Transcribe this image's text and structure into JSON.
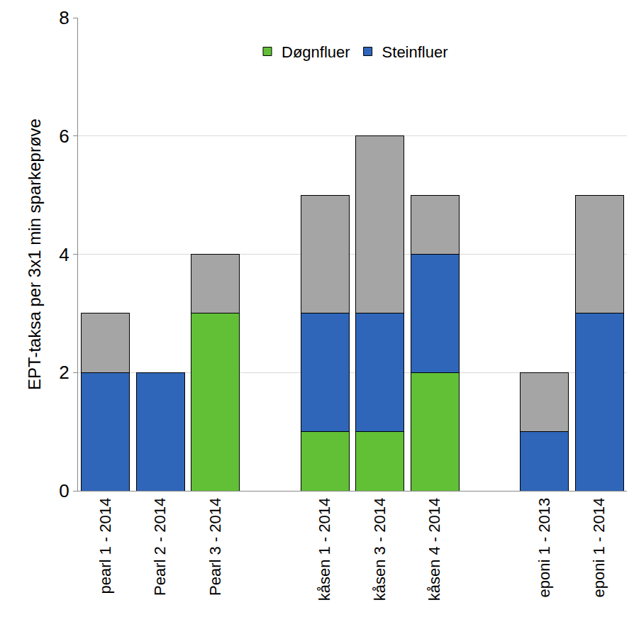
{
  "chart_data": {
    "type": "bar",
    "stacked": true,
    "y_label": "EPT-taksa per 3x1 min sparkeprøve",
    "categories": [
      "pearl 1 - 2014",
      "Pearl 2 - 2014",
      "Pearl 3 - 2014",
      null,
      "kåsen 1 - 2014",
      "kåsen 3 - 2014",
      "kåsen 4 - 2014",
      null,
      "eponi 1 - 2013",
      "eponi 1 - 2014"
    ],
    "series": [
      {
        "name": "Døgnfluer",
        "color": "#62c037",
        "values": [
          0,
          0,
          3,
          null,
          1,
          1,
          2,
          null,
          0,
          0
        ]
      },
      {
        "name": "Steinfluer",
        "color": "#2f66b9",
        "values": [
          2,
          2,
          0,
          null,
          2,
          2,
          2,
          null,
          1,
          3
        ]
      },
      {
        "color": "#a5a5a5",
        "values": [
          1,
          0,
          1,
          null,
          2,
          3,
          1,
          null,
          1,
          2
        ]
      }
    ],
    "ylim": [
      0,
      8
    ],
    "yticks": [
      0,
      2,
      4,
      6,
      8
    ],
    "grid": true,
    "legend": "top"
  }
}
